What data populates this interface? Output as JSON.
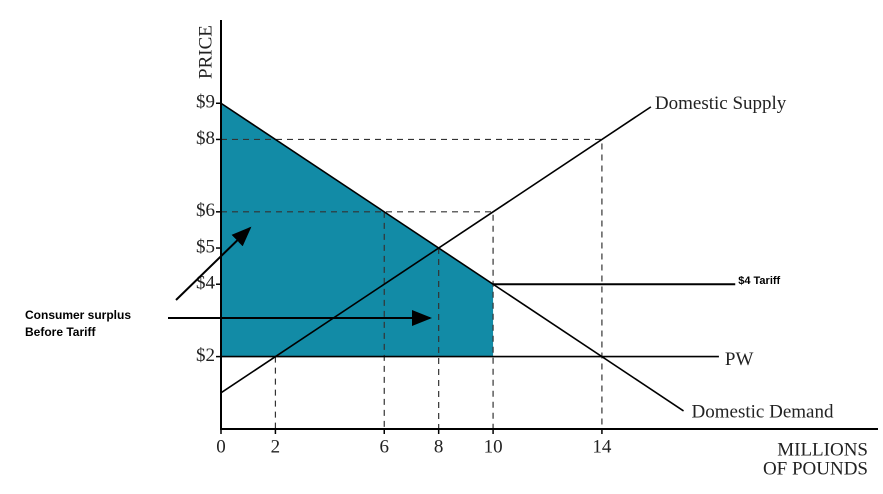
{
  "chart_data": {
    "type": "line",
    "y_label": "PRICE",
    "x_label": [
      "MILLIONS",
      "OF POUNDS"
    ],
    "xlim": [
      0,
      24
    ],
    "ylim": [
      0,
      11.3
    ],
    "xticks": [
      0,
      2,
      6,
      8,
      10,
      14
    ],
    "yticks": [
      {
        "value": 9,
        "label": "$9"
      },
      {
        "value": 8,
        "label": "$8"
      },
      {
        "value": 6,
        "label": "$6"
      },
      {
        "value": 5,
        "label": "$5"
      },
      {
        "value": 4,
        "label": "$4"
      },
      {
        "value": 2,
        "label": "$2"
      }
    ],
    "series": [
      {
        "name": "Domestic Supply",
        "color": "#000000",
        "x": [
          0,
          15.8
        ],
        "values": [
          1,
          8.9
        ]
      },
      {
        "name": "Domestic Demand",
        "color": "#000000",
        "x": [
          0,
          17
        ],
        "values": [
          9,
          0.5
        ]
      },
      {
        "name": "PW",
        "color": "#000000",
        "x": [
          0,
          18.3
        ],
        "values": [
          2,
          2
        ]
      }
    ],
    "shaded_area": {
      "color": "#128ba6",
      "x": [
        0,
        10,
        10,
        0
      ],
      "y": [
        9,
        4,
        2,
        2
      ]
    },
    "dashed_lines": [
      {
        "x": [
          0,
          14,
          14
        ],
        "y": [
          8,
          8,
          0
        ]
      },
      {
        "x": [
          0,
          10,
          10
        ],
        "y": [
          6,
          6,
          0
        ]
      },
      {
        "x": [
          6,
          6
        ],
        "y": [
          6,
          0
        ]
      },
      {
        "x": [
          8,
          8
        ],
        "y": [
          5,
          0
        ]
      },
      {
        "x": [
          2,
          2
        ],
        "y": [
          2,
          0
        ]
      }
    ],
    "tariff_line": {
      "label": "$4 Tariff",
      "x": [
        10,
        18.9
      ],
      "y": [
        4,
        4
      ]
    },
    "annotation": [
      "Consumer surplus",
      "Before Tariff"
    ]
  }
}
